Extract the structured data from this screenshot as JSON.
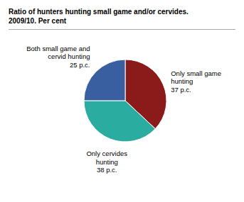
{
  "chart_data": {
    "type": "pie",
    "title": "Ratio of hunters hunting small game and/or cervides.",
    "subtitle": "2009/10. Per cent",
    "categories": [
      "Only small game\nhunting",
      "Only cervides\nhunting",
      "Both small game and\ncervid hunting"
    ],
    "values": [
      37,
      38,
      25
    ],
    "value_labels": [
      "37 p.c.",
      "38 p.c.",
      "25 p.c."
    ],
    "data_labels": true,
    "colors": [
      "#8B1A1A",
      "#2AACA0",
      "#3A5FA0"
    ]
  }
}
